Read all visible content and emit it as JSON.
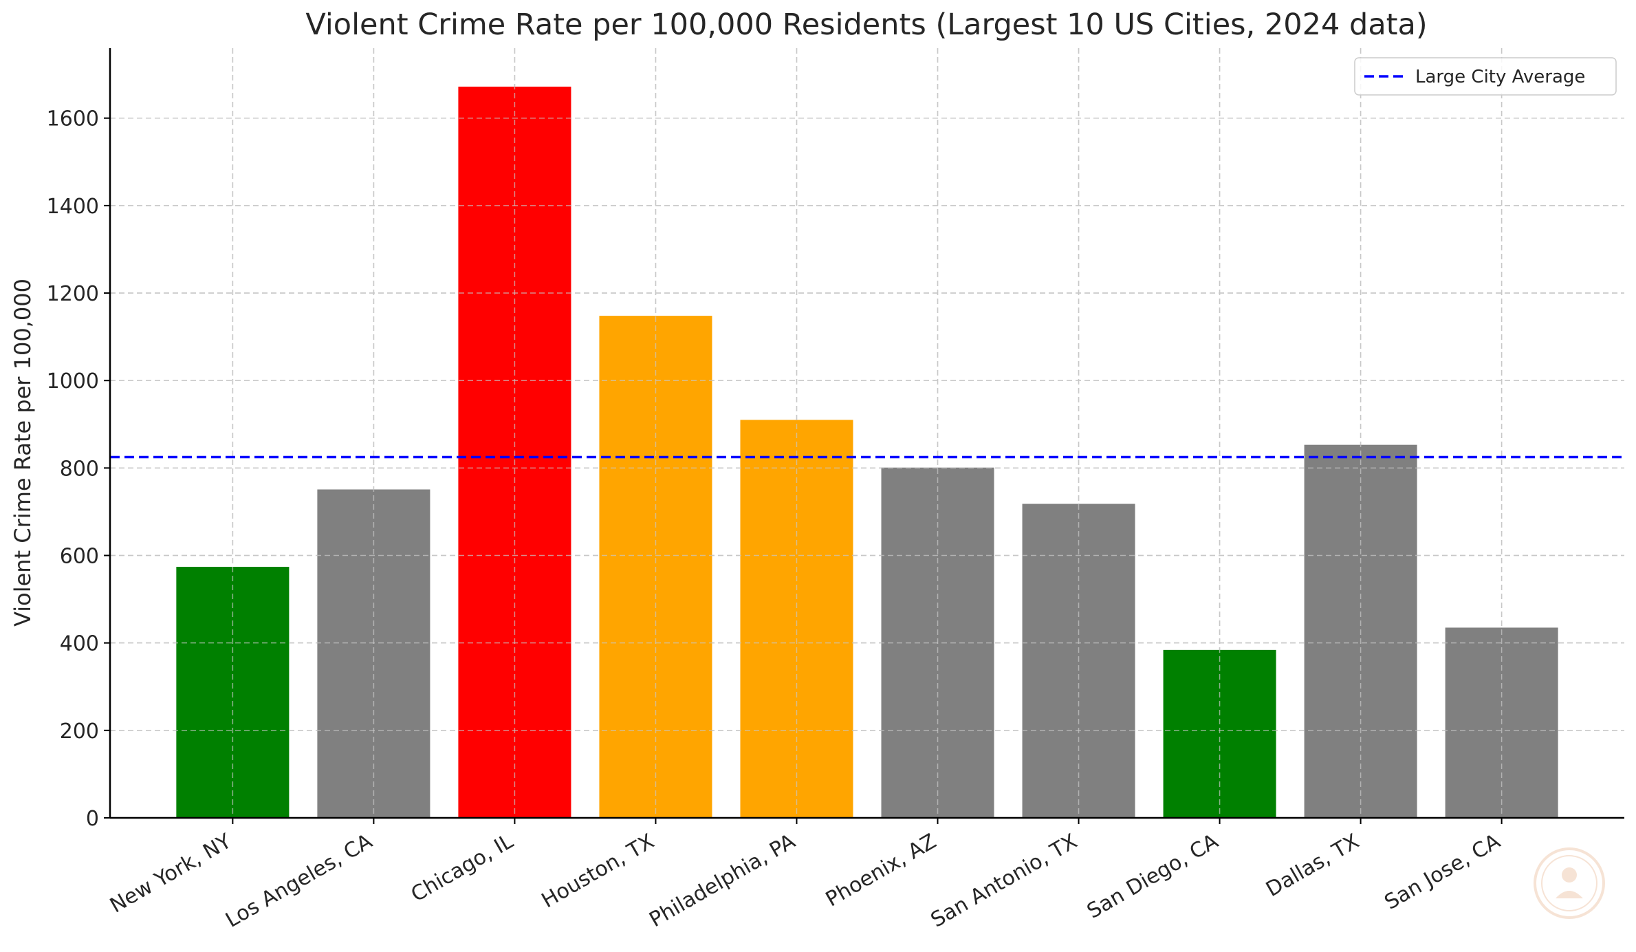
{
  "chart_data": {
    "type": "bar",
    "title": "Violent Crime Rate per 100,000 Residents (Largest 10 US Cities, 2024 data)",
    "xlabel": "",
    "ylabel": "Violent Crime Rate per 100,000",
    "categories": [
      "New York, NY",
      "Los Angeles, CA",
      "Chicago, IL",
      "Houston, TX",
      "Philadelphia, PA",
      "Phoenix, AZ",
      "San Antonio, TX",
      "San Diego, CA",
      "Dallas, TX",
      "San Jose, CA"
    ],
    "values": [
      574,
      751,
      1672,
      1148,
      910,
      801,
      718,
      384,
      853,
      435
    ],
    "bar_colors": [
      "#008000",
      "#808080",
      "#ff0000",
      "#ffa500",
      "#ffa500",
      "#808080",
      "#808080",
      "#008000",
      "#808080",
      "#808080"
    ],
    "ylim": [
      0,
      1760
    ],
    "yticks": [
      0,
      200,
      400,
      600,
      800,
      1000,
      1200,
      1400,
      1600
    ],
    "grid": true,
    "reference_line": {
      "label": "Large City Average",
      "value": 825,
      "color": "#0000ff",
      "style": "dashed"
    },
    "legend": {
      "placement": "top-right",
      "entries": [
        "Large City Average"
      ]
    }
  }
}
